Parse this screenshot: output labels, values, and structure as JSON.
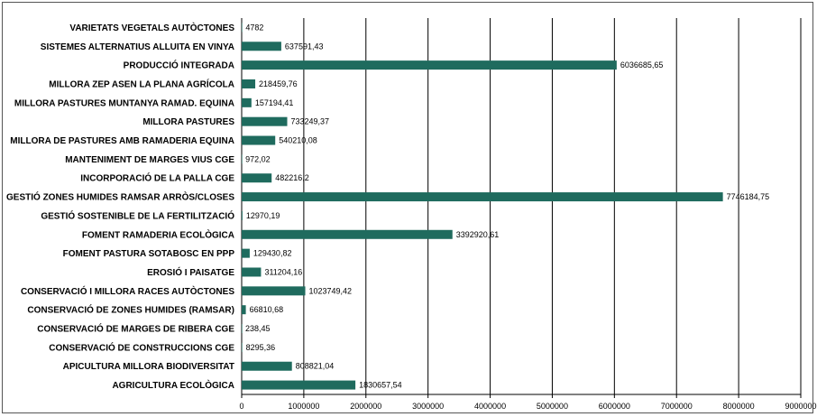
{
  "chart_data": {
    "type": "bar",
    "orientation": "horizontal",
    "title": "",
    "xlabel": "",
    "ylabel": "",
    "xlim": [
      0,
      9000000
    ],
    "x_ticks": [
      "0",
      "1000000",
      "2000000",
      "3000000",
      "4000000",
      "5000000",
      "6000000",
      "7000000",
      "8000000",
      "9000000"
    ],
    "grid": "vertical",
    "bar_color": "#1f6b5e",
    "categories": [
      "VARIETATS VEGETALS AUTÒCTONES",
      "SISTEMES ALTERNATIUS ALLUITA EN VINYA",
      "PRODUCCIÓ INTEGRADA",
      "MILLORA ZEP ASEN LA PLANA AGRÍCOLA",
      "MILLORA PASTURES MUNTANYA RAMAD. EQUINA",
      "MILLORA PASTURES",
      "MILLORA DE PASTURES AMB RAMADERIA EQUINA",
      "MANTENIMENT DE MARGES VIUS CGE",
      "INCORPORACIÓ DE LA PALLA CGE",
      "GESTIÓ ZONES HUMIDES RAMSAR ARRÒS/CLOSES",
      "GESTIÓ SOSTENIBLE DE LA FERTILITZACIÓ",
      "FOMENT RAMADERIA ECOLÒGICA",
      "FOMENT PASTURA SOTABOSC EN PPP",
      "EROSIÓ I PAISATGE",
      "CONSERVACIÓ I MILLORA RACES AUTÒCTONES",
      "CONSERVACIÓ DE ZONES HUMIDES (RAMSAR)",
      "CONSERVACIÓ DE MARGES DE RIBERA CGE",
      "CONSERVACIÓ DE CONSTRUCCIONS CGE",
      "APICULTURA MILLORA BIODIVERSITAT",
      "AGRICULTURA ECOLÒGICA"
    ],
    "values": [
      4782,
      637591.43,
      6036685.65,
      218459.76,
      157194.41,
      733249.37,
      540210.08,
      972.02,
      482216.2,
      7746184.75,
      12970.19,
      3392920.61,
      129430.82,
      311204.16,
      1023749.42,
      66810.68,
      238.45,
      8295.36,
      808821.04,
      1830657.54
    ],
    "value_labels": [
      "4782",
      "637591,43",
      "6036685,65",
      "218459,76",
      "157194,41",
      "733249,37",
      "540210,08",
      "972,02",
      "482216,2",
      "7746184,75",
      "12970,19",
      "3392920,61",
      "129430,82",
      "311204,16",
      "1023749,42",
      "66810,68",
      "238,45",
      "8295,36",
      "808821,04",
      "1830657,54"
    ]
  }
}
